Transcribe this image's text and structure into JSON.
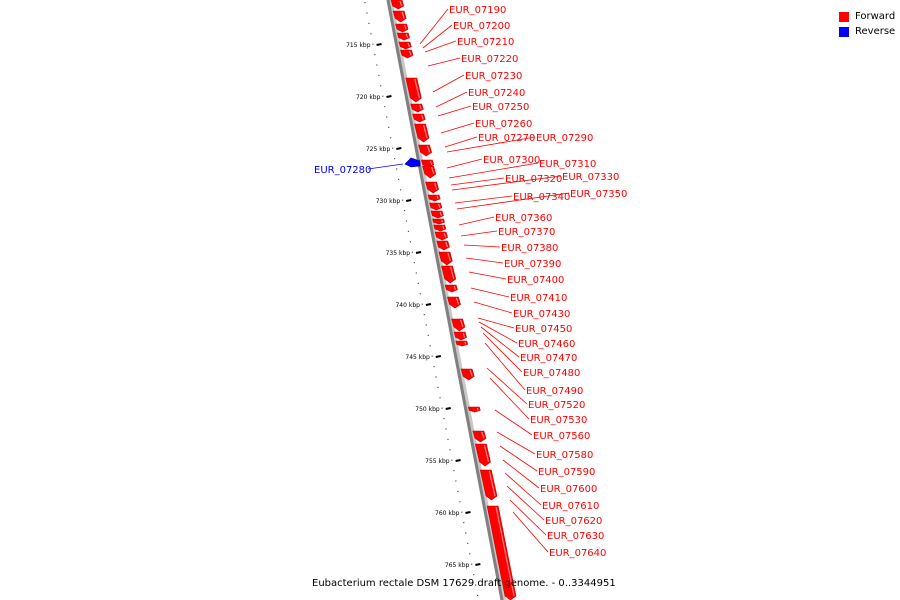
{
  "caption": "Eubacterium rectale DSM 17629 draft genome. - 0..3344951",
  "legend": {
    "forward_label": "Forward",
    "reverse_label": "Reverse",
    "forward_color": "#ff0000",
    "reverse_color": "#0000ff"
  },
  "colors": {
    "backbone": "#808080",
    "forward": "#ff0000",
    "reverse": "#0000ff"
  },
  "scale_ticks": [
    "715 kbp",
    "720 kbp",
    "725 kbp",
    "730 kbp",
    "735 kbp",
    "740 kbp",
    "745 kbp",
    "750 kbp",
    "755 kbp",
    "760 kbp",
    "765 kbp"
  ],
  "genes": [
    {
      "name": "EUR_07190",
      "strand": "forward"
    },
    {
      "name": "EUR_07200",
      "strand": "forward"
    },
    {
      "name": "EUR_07210",
      "strand": "forward"
    },
    {
      "name": "EUR_07220",
      "strand": "forward"
    },
    {
      "name": "EUR_07230",
      "strand": "forward"
    },
    {
      "name": "EUR_07240",
      "strand": "forward"
    },
    {
      "name": "EUR_07250",
      "strand": "forward"
    },
    {
      "name": "EUR_07260",
      "strand": "forward"
    },
    {
      "name": "EUR_07270",
      "strand": "forward"
    },
    {
      "name": "EUR_07280",
      "strand": "reverse"
    },
    {
      "name": "EUR_07290",
      "strand": "forward"
    },
    {
      "name": "EUR_07300",
      "strand": "forward"
    },
    {
      "name": "EUR_07310",
      "strand": "forward"
    },
    {
      "name": "EUR_07320",
      "strand": "forward"
    },
    {
      "name": "EUR_07330",
      "strand": "forward"
    },
    {
      "name": "EUR_07340",
      "strand": "forward"
    },
    {
      "name": "EUR_07350",
      "strand": "forward"
    },
    {
      "name": "EUR_07360",
      "strand": "forward"
    },
    {
      "name": "EUR_07370",
      "strand": "forward"
    },
    {
      "name": "EUR_07380",
      "strand": "forward"
    },
    {
      "name": "EUR_07390",
      "strand": "forward"
    },
    {
      "name": "EUR_07400",
      "strand": "forward"
    },
    {
      "name": "EUR_07410",
      "strand": "forward"
    },
    {
      "name": "EUR_07430",
      "strand": "forward"
    },
    {
      "name": "EUR_07450",
      "strand": "forward"
    },
    {
      "name": "EUR_07460",
      "strand": "forward"
    },
    {
      "name": "EUR_07470",
      "strand": "forward"
    },
    {
      "name": "EUR_07480",
      "strand": "forward"
    },
    {
      "name": "EUR_07490",
      "strand": "forward"
    },
    {
      "name": "EUR_07520",
      "strand": "forward"
    },
    {
      "name": "EUR_07530",
      "strand": "forward"
    },
    {
      "name": "EUR_07560",
      "strand": "forward"
    },
    {
      "name": "EUR_07580",
      "strand": "forward"
    },
    {
      "name": "EUR_07590",
      "strand": "forward"
    },
    {
      "name": "EUR_07600",
      "strand": "forward"
    },
    {
      "name": "EUR_07610",
      "strand": "forward"
    },
    {
      "name": "EUR_07620",
      "strand": "forward"
    },
    {
      "name": "EUR_07630",
      "strand": "forward"
    },
    {
      "name": "EUR_07640",
      "strand": "forward"
    }
  ]
}
